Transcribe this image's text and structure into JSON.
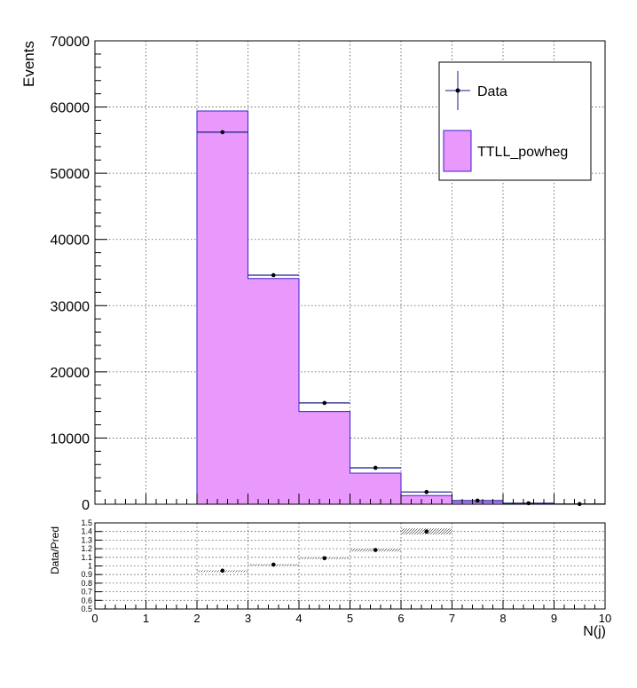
{
  "chart_data": [
    {
      "type": "bar",
      "panel": "main",
      "xlabel": "N(j)",
      "ylabel": "Events",
      "xlim": [
        0,
        10
      ],
      "ylim": [
        0,
        70000
      ],
      "grid": true,
      "legend_position": "top-right",
      "x_ticks": [
        "0",
        "1",
        "2",
        "3",
        "4",
        "5",
        "6",
        "7",
        "8",
        "9",
        "10"
      ],
      "y_ticks": [
        "0",
        "10000",
        "20000",
        "30000",
        "40000",
        "50000",
        "60000",
        "70000"
      ],
      "bins": [
        [
          0,
          1
        ],
        [
          1,
          2
        ],
        [
          2,
          3
        ],
        [
          3,
          4
        ],
        [
          4,
          5
        ],
        [
          5,
          6
        ],
        [
          6,
          7
        ],
        [
          7,
          8
        ],
        [
          8,
          9
        ],
        [
          9,
          10
        ]
      ],
      "series": [
        {
          "name": "TTLL_powheg",
          "kind": "histogram",
          "values": [
            0,
            0,
            59400,
            34100,
            14000,
            4700,
            1300,
            300,
            60,
            10
          ]
        },
        {
          "name": "Data",
          "kind": "points",
          "values": [
            0,
            0,
            56200,
            34600,
            15300,
            5500,
            1850,
            550,
            150,
            30
          ]
        }
      ]
    },
    {
      "type": "scatter",
      "panel": "ratio",
      "ylabel": "Data/Pred",
      "xlabel": "N(j)",
      "xlim": [
        0,
        10
      ],
      "ylim": [
        0.5,
        1.5
      ],
      "grid": true,
      "y_ticks": [
        "0.5",
        "0.6",
        "0.7",
        "0.8",
        "0.9",
        "1",
        "1.1",
        "1.2",
        "1.3",
        "1.4",
        "1.5"
      ],
      "x": [
        2.5,
        3.5,
        4.5,
        5.5,
        6.5
      ],
      "values": [
        0.945,
        1.015,
        1.09,
        1.185,
        1.4
      ],
      "uncertainty_band": [
        0.004,
        0.006,
        0.01,
        0.018,
        0.035
      ]
    }
  ],
  "colors": {
    "mc_fill": "#e899fb",
    "mc_line": "#3b1fd6",
    "data": "#000000",
    "band": "#888888"
  }
}
